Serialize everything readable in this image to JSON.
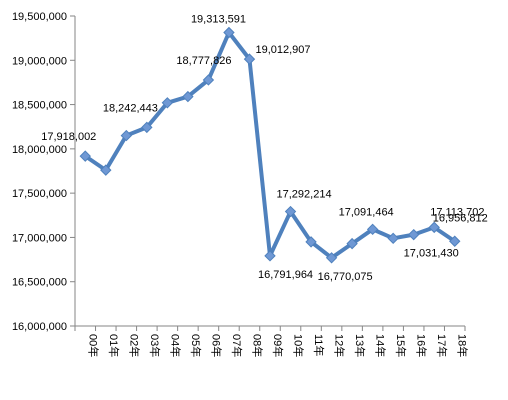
{
  "chart_data": {
    "type": "line",
    "title": "",
    "xlabel": "",
    "ylabel": "",
    "ylim": [
      16000000,
      19500000
    ],
    "yticks": [
      16000000,
      16500000,
      17000000,
      17500000,
      18000000,
      18500000,
      19000000,
      19500000
    ],
    "ytick_labels": [
      "16,000,000",
      "16,500,000",
      "17,000,000",
      "17,500,000",
      "18,000,000",
      "18,500,000",
      "19,000,000",
      "19,500,000"
    ],
    "categories": [
      "00年",
      "01年",
      "02年",
      "03年",
      "04年",
      "05年",
      "06年",
      "07年",
      "08年",
      "09年",
      "10年",
      "11年",
      "12年",
      "13年",
      "14年",
      "15年",
      "16年",
      "17年",
      "18年"
    ],
    "grid": false,
    "legend": "none",
    "series": [
      {
        "color": "#4F81BD",
        "marker_color": "#6F98D4",
        "values": [
          17918002,
          17760000,
          18150000,
          18242443,
          18520000,
          18590000,
          18777826,
          19313591,
          19012907,
          16791964,
          17292214,
          16950000,
          16770075,
          16930000,
          17091464,
          16990000,
          17031430,
          17113702,
          16956812
        ]
      }
    ],
    "data_labels": [
      {
        "index": 0,
        "text": "17,918,002"
      },
      {
        "index": 3,
        "text": "18,242,443"
      },
      {
        "index": 6,
        "text": "18,777,826"
      },
      {
        "index": 7,
        "text": "19,313,591"
      },
      {
        "index": 8,
        "text": "19,012,907"
      },
      {
        "index": 9,
        "text": "16,791,964"
      },
      {
        "index": 10,
        "text": "17,292,214"
      },
      {
        "index": 12,
        "text": "16,770,075"
      },
      {
        "index": 14,
        "text": "17,091,464"
      },
      {
        "index": 16,
        "text": "17,031,430"
      },
      {
        "index": 17,
        "text": "17,113,702"
      },
      {
        "index": 18,
        "text": "16,956,812"
      }
    ]
  }
}
